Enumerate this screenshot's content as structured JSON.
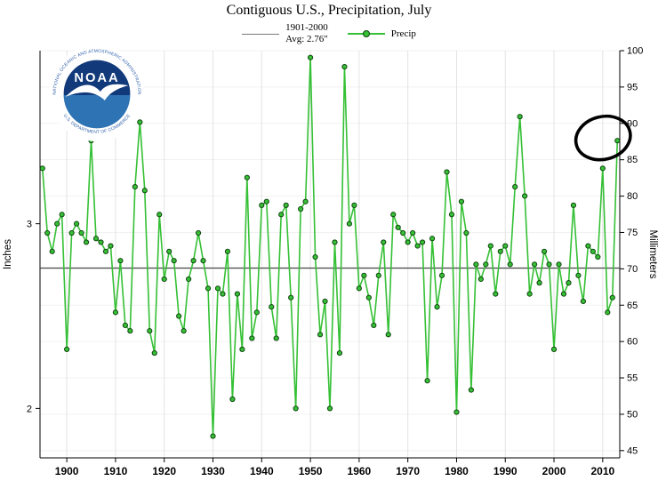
{
  "page": {
    "title": "Contiguous U.S., Precipitation, July"
  },
  "legend": {
    "avg_label_line1": "1901-2000",
    "avg_label_line2": "Avg: 2.76\"",
    "series_label": "Precip"
  },
  "axes": {
    "left_label": "Inches",
    "right_label": "Millimeters",
    "left_ticks": [
      2,
      3
    ],
    "right_ticks": [
      45,
      50,
      55,
      60,
      65,
      70,
      75,
      80,
      85,
      90,
      95,
      100
    ],
    "x_ticks": [
      1900,
      1910,
      1920,
      1930,
      1940,
      1950,
      1960,
      1970,
      1980,
      1990,
      2000,
      2010
    ]
  },
  "colors": {
    "line": "#35c035",
    "marker_fill": "#35c035",
    "marker_stroke": "#114411",
    "avg_line": "#4a4a4a",
    "grid_vertical": "#e3e3e3",
    "grid_horizontal": "#f1f1f1",
    "axis": "#000000",
    "annotation": "#000000"
  },
  "logo": {
    "text": "NOAA",
    "ring_top": "NATIONAL OCEANIC AND ATMOSPHERIC ADMINISTRATION",
    "ring_bottom": "U.S. DEPARTMENT OF COMMERCE"
  },
  "chart_data": {
    "type": "line",
    "title": "Contiguous U.S., Precipitation, July",
    "xlabel": "",
    "ylabel": "Inches",
    "y2label": "Millimeters",
    "xlim": [
      1894.5,
      2013.5
    ],
    "ylim_mm": [
      44,
      100
    ],
    "grid": true,
    "legend_position": "top",
    "units": "inches",
    "conversion": "mm = inches * 25.4",
    "baseline": {
      "label": "1901-2000 Avg",
      "value_inches": 2.76
    },
    "annotation": {
      "shape": "ellipse",
      "year": 2013,
      "color": "#000000"
    },
    "years": [
      1895,
      1896,
      1897,
      1898,
      1899,
      1900,
      1901,
      1902,
      1903,
      1904,
      1905,
      1906,
      1907,
      1908,
      1909,
      1910,
      1911,
      1912,
      1913,
      1914,
      1915,
      1916,
      1917,
      1918,
      1919,
      1920,
      1921,
      1922,
      1923,
      1924,
      1925,
      1926,
      1927,
      1928,
      1929,
      1930,
      1931,
      1932,
      1933,
      1934,
      1935,
      1936,
      1937,
      1938,
      1939,
      1940,
      1941,
      1942,
      1943,
      1944,
      1945,
      1946,
      1947,
      1948,
      1949,
      1950,
      1951,
      1952,
      1953,
      1954,
      1955,
      1956,
      1957,
      1958,
      1959,
      1960,
      1961,
      1962,
      1963,
      1964,
      1965,
      1966,
      1967,
      1968,
      1969,
      1970,
      1971,
      1972,
      1973,
      1974,
      1975,
      1976,
      1977,
      1978,
      1979,
      1980,
      1981,
      1982,
      1983,
      1984,
      1985,
      1986,
      1987,
      1988,
      1989,
      1990,
      1991,
      1992,
      1993,
      1994,
      1995,
      1996,
      1997,
      1998,
      1999,
      2000,
      2001,
      2002,
      2003,
      2004,
      2005,
      2006,
      2007,
      2008,
      2009,
      2010,
      2011,
      2012,
      2013
    ],
    "series": [
      {
        "name": "Precip",
        "values": [
          3.3,
          2.95,
          2.85,
          3.0,
          3.05,
          2.32,
          2.95,
          3.0,
          2.95,
          2.9,
          3.45,
          2.92,
          2.9,
          2.85,
          2.88,
          2.52,
          2.8,
          2.45,
          2.42,
          3.2,
          3.55,
          3.18,
          2.42,
          2.3,
          3.05,
          2.7,
          2.85,
          2.8,
          2.5,
          2.42,
          2.7,
          2.8,
          2.95,
          2.8,
          2.65,
          1.85,
          2.65,
          2.62,
          2.85,
          2.05,
          2.62,
          2.32,
          3.25,
          2.38,
          2.52,
          3.1,
          3.12,
          2.55,
          2.38,
          3.05,
          3.1,
          2.6,
          2.0,
          3.08,
          3.12,
          3.9,
          2.82,
          2.4,
          2.58,
          2.0,
          2.9,
          2.3,
          3.85,
          3.0,
          3.1,
          2.65,
          2.72,
          2.6,
          2.45,
          2.72,
          2.9,
          2.4,
          3.05,
          2.98,
          2.95,
          2.9,
          2.95,
          2.88,
          2.9,
          2.15,
          2.92,
          2.55,
          2.72,
          3.28,
          3.05,
          1.98,
          3.12,
          2.95,
          2.1,
          2.78,
          2.7,
          2.78,
          2.88,
          2.62,
          2.85,
          2.88,
          2.78,
          3.2,
          3.58,
          3.15,
          2.62,
          2.78,
          2.68,
          2.85,
          2.78,
          2.32,
          2.78,
          2.62,
          2.68,
          3.1,
          2.72,
          2.58,
          2.88,
          2.85,
          2.82,
          3.3,
          2.52,
          2.6,
          3.45
        ]
      }
    ]
  }
}
